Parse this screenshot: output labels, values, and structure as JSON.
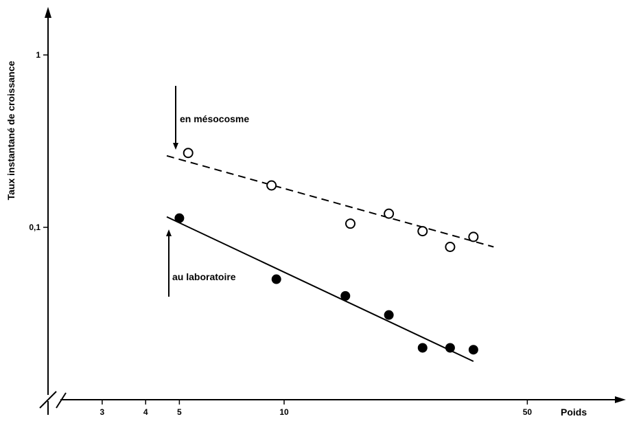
{
  "chart_data": {
    "type": "scatter",
    "xlabel": "Poids",
    "ylabel": "Taux instantané de croissance",
    "x_scale": "log",
    "y_scale": "log",
    "xlim": [
      2.2,
      70
    ],
    "ylim": [
      0.012,
      2.2
    ],
    "x_ticks": [
      {
        "value": 3,
        "label": "3"
      },
      {
        "value": 4,
        "label": "4"
      },
      {
        "value": 5,
        "label": "5"
      },
      {
        "value": 10,
        "label": "10"
      },
      {
        "value": 50,
        "label": "50"
      }
    ],
    "y_ticks": [
      {
        "value": 1,
        "label": "1"
      },
      {
        "value": 0.1,
        "label": "0,1"
      }
    ],
    "grid": false,
    "legend": "none",
    "series": [
      {
        "name": "en mésocosme",
        "marker": "open-circle",
        "line_style": "dashed",
        "color": "#000000",
        "points": [
          {
            "x": 5.3,
            "y": 0.27
          },
          {
            "x": 9.2,
            "y": 0.175
          },
          {
            "x": 15.5,
            "y": 0.105
          },
          {
            "x": 20,
            "y": 0.12
          },
          {
            "x": 25,
            "y": 0.095
          },
          {
            "x": 30,
            "y": 0.077
          },
          {
            "x": 35,
            "y": 0.088
          }
        ],
        "fit_line": [
          {
            "x": 4.6,
            "y": 0.26
          },
          {
            "x": 40,
            "y": 0.077
          }
        ]
      },
      {
        "name": "au laboratoire",
        "marker": "filled-circle",
        "line_style": "solid",
        "color": "#000000",
        "points": [
          {
            "x": 5,
            "y": 0.113
          },
          {
            "x": 9.5,
            "y": 0.05
          },
          {
            "x": 15,
            "y": 0.04
          },
          {
            "x": 20,
            "y": 0.031
          },
          {
            "x": 25,
            "y": 0.02
          },
          {
            "x": 30,
            "y": 0.02
          },
          {
            "x": 35,
            "y": 0.0195
          }
        ],
        "fit_line": [
          {
            "x": 4.6,
            "y": 0.115
          },
          {
            "x": 35,
            "y": 0.0167
          }
        ]
      }
    ],
    "annotations": [
      {
        "text": "en mésocosme",
        "arrow": "down",
        "series": 0
      },
      {
        "text": "au laboratoire",
        "arrow": "up",
        "series": 1
      }
    ]
  }
}
